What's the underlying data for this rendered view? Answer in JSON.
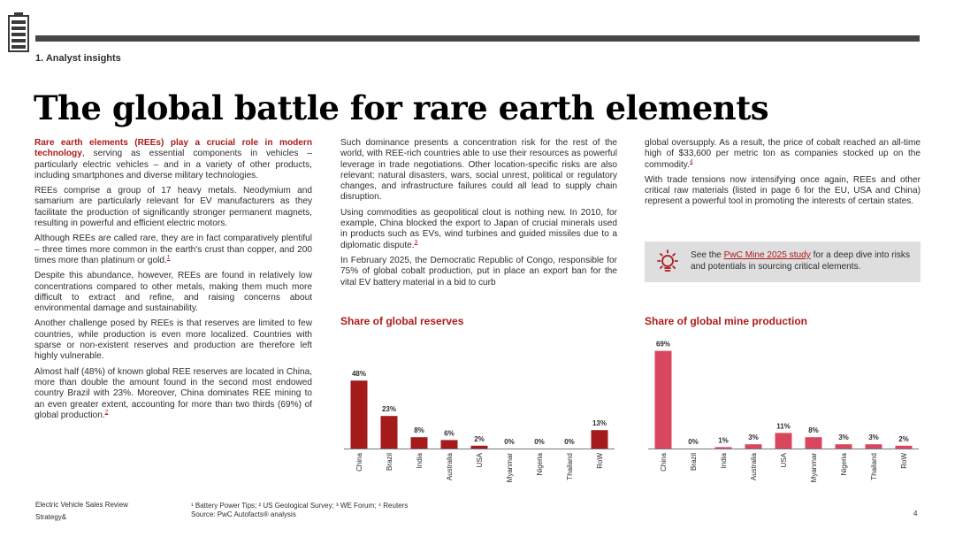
{
  "header": {
    "section": "1. Analyst insights",
    "title": "The global battle for rare earth elements"
  },
  "column1": {
    "lead": "Rare earth elements (REEs) play a crucial role in modern technology",
    "p1_rest": ", serving as essential components in vehicles – particularly electric vehicles – and in a variety of other products, including smartphones and diverse military technologies.",
    "p2": "REEs comprise a group of 17 heavy metals. Neodymium and samarium are particularly relevant for EV manufacturers as they facilitate the production of significantly stronger permanent magnets, resulting in powerful and efficient electric motors.",
    "p3": "Although REEs are called rare, they are in fact comparatively plentiful – three times more common in the earth's crust than copper, and 200 times more than platinum or gold.",
    "p3_ref": "1",
    "p4": "Despite this abundance, however, REEs are found in relatively low concentrations compared to other metals, making them much more difficult to extract and refine, and raising concerns about environmental damage and sustainability.",
    "p5": "Another challenge posed by REEs is that reserves are limited to few countries, while production is even more localized. Countries with sparse or non-existent reserves and production are therefore left highly vulnerable.",
    "p6": "Almost half (48%) of known global REE reserves are located in China, more than double the amount found in the second most endowed country Brazil with 23%. Moreover, China dominates REE mining to an even greater extent, accounting for more than two thirds (69%) of global production.",
    "p6_ref": "2"
  },
  "column2": {
    "p1": "Such dominance presents a concentration risk for the rest of the world, with REE-rich countries able to use their resources as powerful leverage in trade negotiations. Other location-specific risks are also relevant: natural disasters, wars, social unrest, political or regulatory changes, and infrastructure failures could all lead to supply chain disruption.",
    "p2": "Using commodities as geopolitical clout is nothing new. In 2010, for example, China blocked the export to Japan of crucial minerals used in products such as EVs, wind turbines and guided missiles due to a diplomatic dispute.",
    "p2_ref": "3",
    "p3": "In February 2025, the Democratic Republic of Congo, responsible for  75% of global cobalt production, put in place an export ban for the vital EV battery material in a bid to curb"
  },
  "column3": {
    "p1": "global oversupply. As a result, the price of cobalt reached an all-time high of $33,600 per metric ton as companies stocked up on the commodity.",
    "p1_ref": "4",
    "p2": "With trade tensions now intensifying once again, REEs and other critical raw materials (listed in page 6 for the EU, USA and China) represent a powerful tool in promoting the interests of certain states."
  },
  "callout": {
    "before": "See the ",
    "link": "PwC Mine 2025 study",
    "after": " for a deep dive into risks and potentials in sourcing critical elements.",
    "icon": "lightbulb-icon"
  },
  "chart_data": [
    {
      "type": "bar",
      "title": "Share of global reserves",
      "categories": [
        "China",
        "Brazil",
        "India",
        "Australia",
        "USA",
        "Myanmar",
        "Nigeria",
        "Thailand",
        "RoW"
      ],
      "values": [
        48,
        23,
        8,
        6,
        2,
        0,
        0,
        0,
        13
      ],
      "labels": [
        "48%",
        "23%",
        "8%",
        "6%",
        "2%",
        "0%",
        "0%",
        "0%",
        "13%"
      ],
      "color": "#a51b1b",
      "ylim": [
        0,
        70
      ]
    },
    {
      "type": "bar",
      "title": "Share of global mine production",
      "categories": [
        "China",
        "Brazil",
        "India",
        "Australia",
        "USA",
        "Myanmar",
        "Nigeria",
        "Thailand",
        "RoW"
      ],
      "values": [
        69,
        0,
        1,
        3,
        11,
        8,
        3,
        3,
        2
      ],
      "labels": [
        "69%",
        "0%",
        "1%",
        "3%",
        "11%",
        "8%",
        "3%",
        "3%",
        "2%"
      ],
      "color": "#d9475f",
      "ylim": [
        0,
        70
      ]
    }
  ],
  "footer": {
    "publication": "Electric Vehicle Sales Review",
    "brand": "Strategy&",
    "footnotes": "¹ Battery Power Tips; ² US Geological Survey; ³ WE Forum; ⁴ Reuters",
    "source": "Source: PwC Autofacts® analysis",
    "page": "4"
  }
}
